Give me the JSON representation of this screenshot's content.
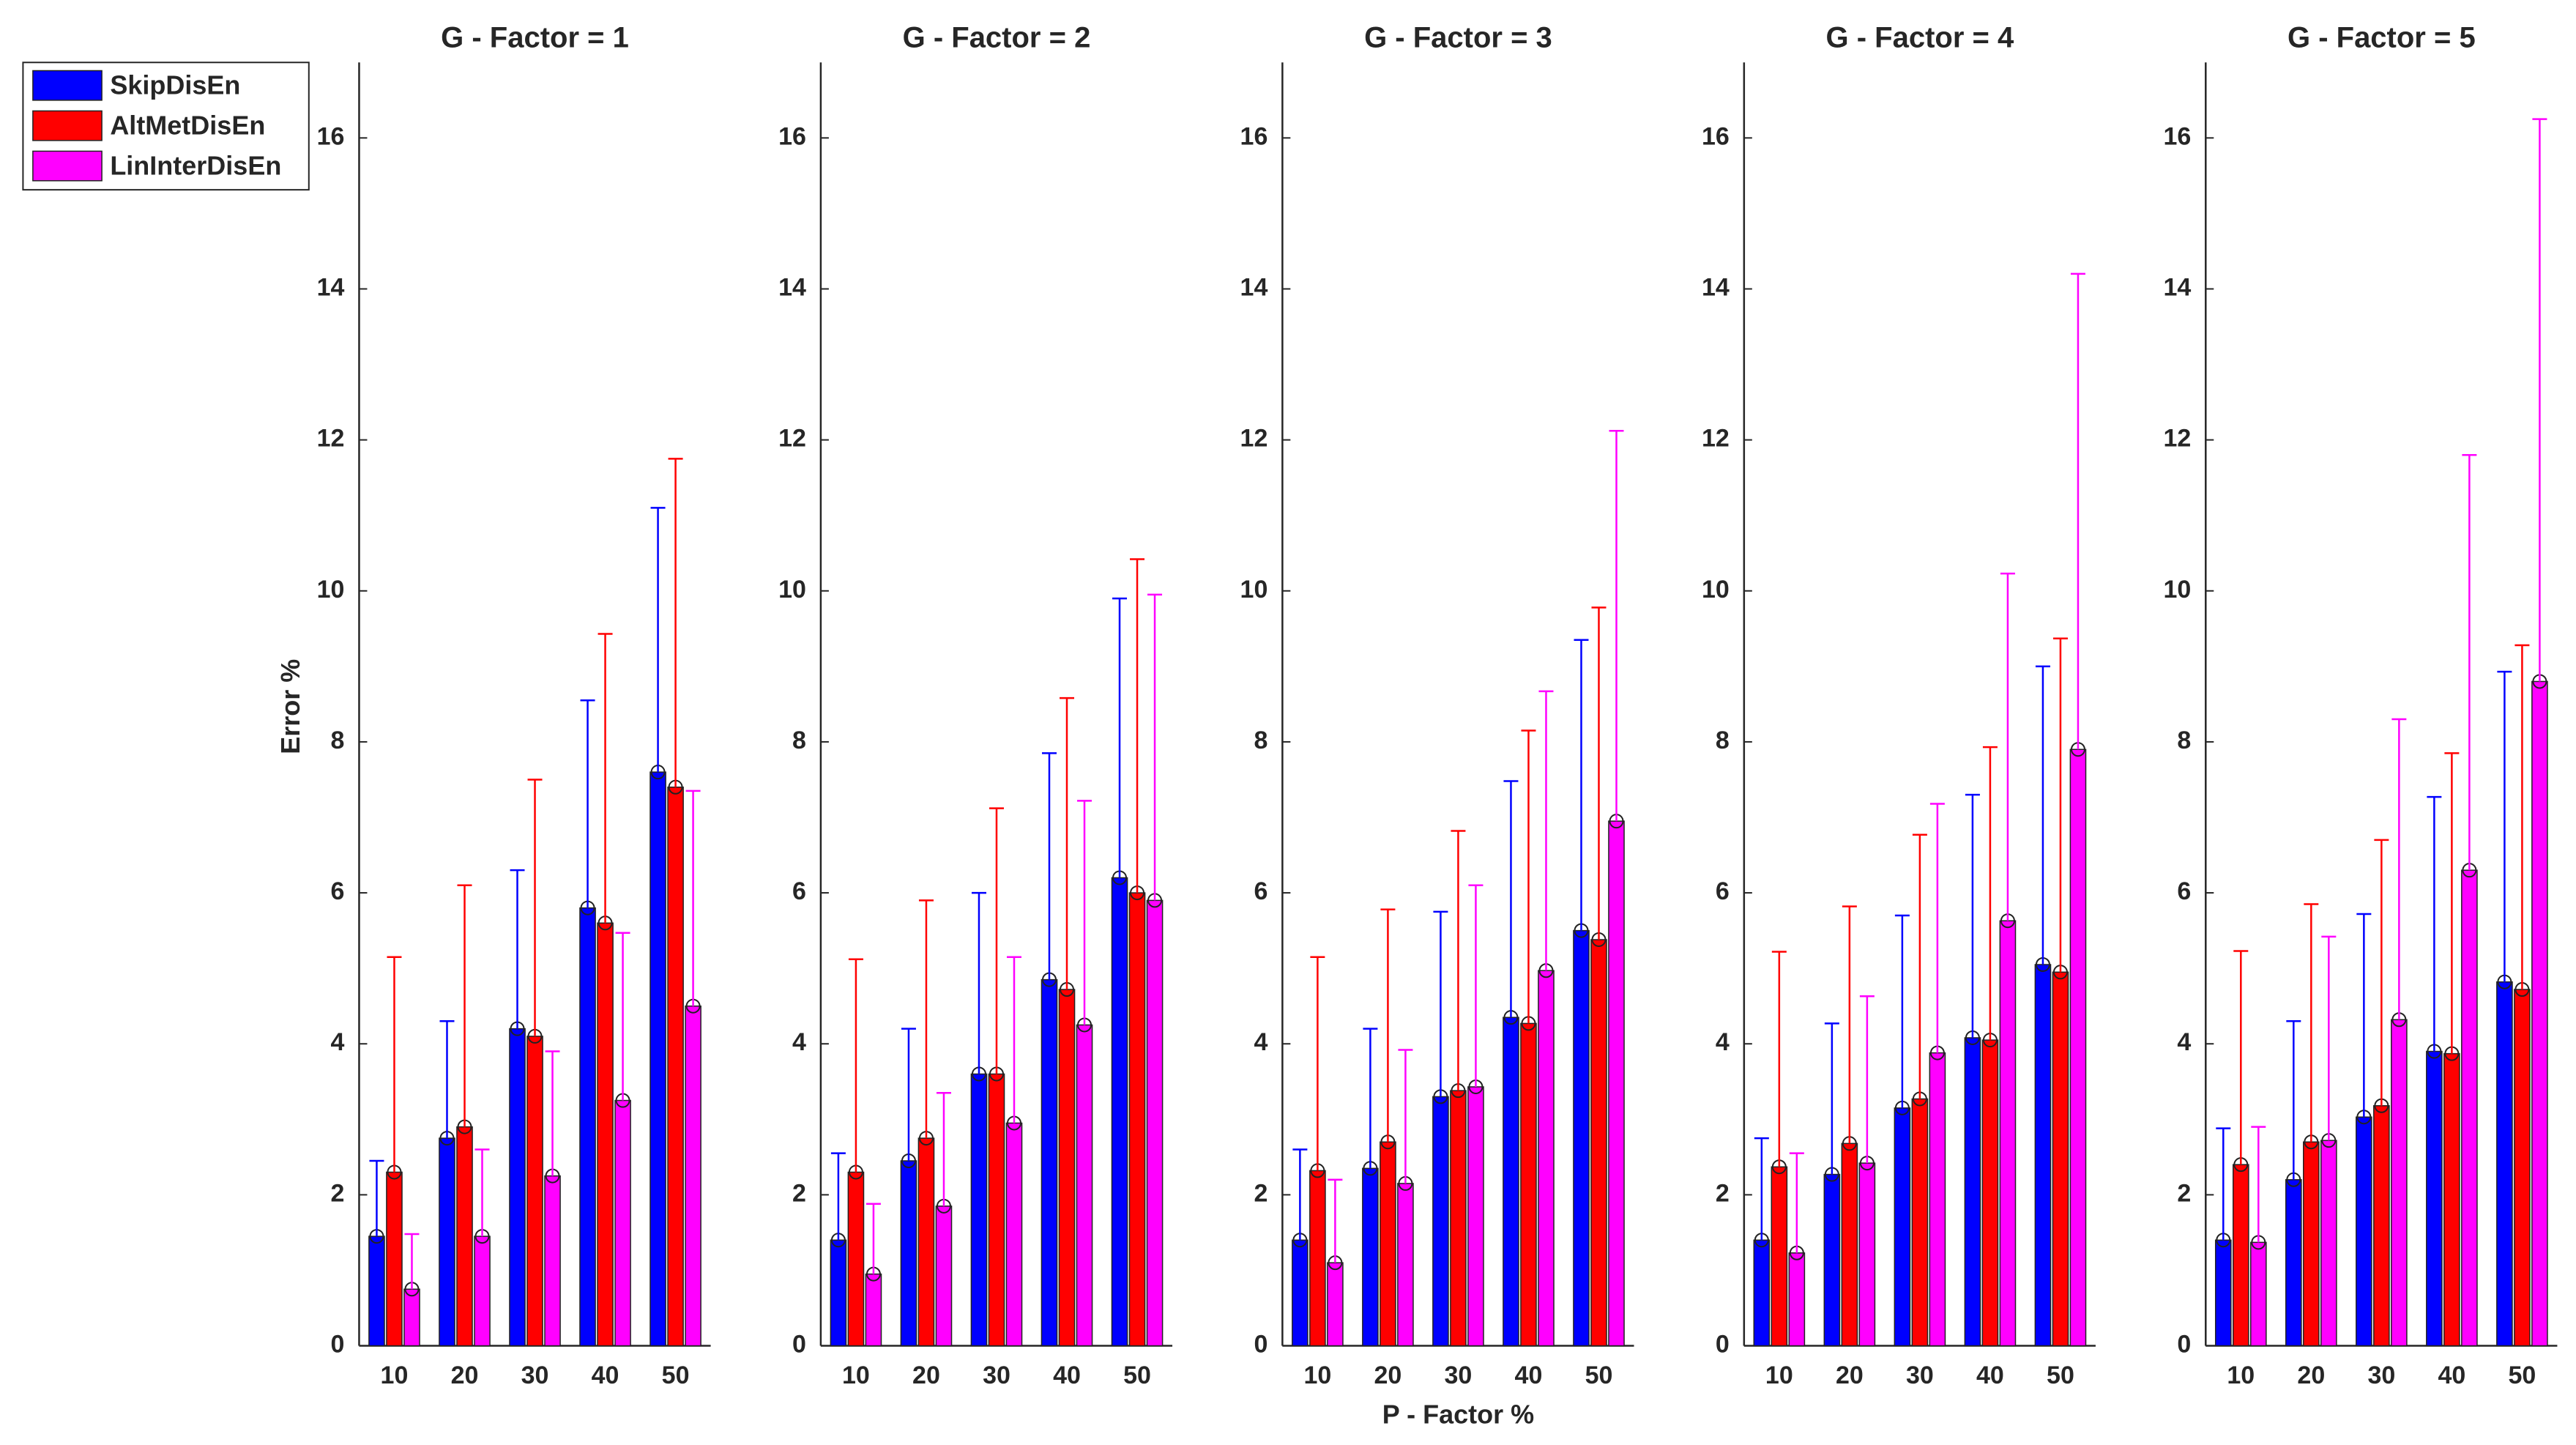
{
  "chart_data": [
    {
      "type": "bar",
      "title": "G - Factor = 1",
      "ylabel": "Error %",
      "categories": [
        "10",
        "20",
        "30",
        "40",
        "50"
      ],
      "series": [
        {
          "name": "SkipDisEn",
          "color": "#0000ff",
          "values": [
            1.45,
            2.75,
            4.2,
            5.8,
            7.6
          ],
          "errors": [
            1.0,
            1.55,
            2.1,
            2.75,
            3.5
          ]
        },
        {
          "name": "AltMetDisEn",
          "color": "#ff0000",
          "values": [
            2.3,
            2.9,
            4.1,
            5.6,
            7.4
          ],
          "errors": [
            2.85,
            3.2,
            3.4,
            3.83,
            4.35
          ]
        },
        {
          "name": "LinInterDisEn",
          "color": "#ff00ff",
          "values": [
            0.75,
            1.45,
            2.25,
            3.25,
            4.5
          ],
          "errors": [
            0.73,
            1.15,
            1.65,
            2.22,
            2.85
          ]
        }
      ],
      "ylim": [
        0,
        17
      ],
      "yticks": [
        0,
        2,
        4,
        6,
        8,
        10,
        12,
        14,
        16
      ],
      "legend": "upper left"
    },
    {
      "type": "bar",
      "title": "G - Factor = 2",
      "categories": [
        "10",
        "20",
        "30",
        "40",
        "50"
      ],
      "series": [
        {
          "color": "#0000ff",
          "values": [
            1.4,
            2.45,
            3.6,
            4.85,
            6.2
          ],
          "errors": [
            1.15,
            1.75,
            2.4,
            3.0,
            3.7
          ]
        },
        {
          "color": "#ff0000",
          "values": [
            2.3,
            2.75,
            3.6,
            4.72,
            6.0
          ],
          "errors": [
            2.82,
            3.15,
            3.52,
            3.86,
            4.42
          ]
        },
        {
          "color": "#ff00ff",
          "values": [
            0.95,
            1.85,
            2.95,
            4.25,
            5.9
          ],
          "errors": [
            0.93,
            1.5,
            2.2,
            2.97,
            4.05
          ]
        }
      ],
      "ylim": [
        0,
        17
      ],
      "yticks": [
        0,
        2,
        4,
        6,
        8,
        10,
        12,
        14,
        16
      ]
    },
    {
      "type": "bar",
      "title": "G - Factor = 3",
      "xlabel": "P - Factor %",
      "categories": [
        "10",
        "20",
        "30",
        "40",
        "50"
      ],
      "series": [
        {
          "color": "#0000ff",
          "values": [
            1.4,
            2.35,
            3.3,
            4.35,
            5.5
          ],
          "errors": [
            1.2,
            1.85,
            2.45,
            3.13,
            3.85
          ]
        },
        {
          "color": "#ff0000",
          "values": [
            2.32,
            2.7,
            3.38,
            4.27,
            5.38
          ],
          "errors": [
            2.83,
            3.08,
            3.44,
            3.88,
            4.4
          ]
        },
        {
          "color": "#ff00ff",
          "values": [
            1.1,
            2.15,
            3.43,
            4.97,
            6.95
          ],
          "errors": [
            1.1,
            1.77,
            2.67,
            3.7,
            5.17
          ]
        }
      ],
      "ylim": [
        0,
        17
      ],
      "yticks": [
        0,
        2,
        4,
        6,
        8,
        10,
        12,
        14,
        16
      ]
    },
    {
      "type": "bar",
      "title": "G - Factor = 4",
      "categories": [
        "10",
        "20",
        "30",
        "40",
        "50"
      ],
      "series": [
        {
          "color": "#0000ff",
          "values": [
            1.4,
            2.27,
            3.15,
            4.08,
            5.05
          ],
          "errors": [
            1.35,
            2.0,
            2.55,
            3.22,
            3.95
          ]
        },
        {
          "color": "#ff0000",
          "values": [
            2.37,
            2.68,
            3.27,
            4.05,
            4.95
          ],
          "errors": [
            2.85,
            3.14,
            3.5,
            3.88,
            4.42
          ]
        },
        {
          "color": "#ff00ff",
          "values": [
            1.23,
            2.42,
            3.88,
            5.63,
            7.9
          ],
          "errors": [
            1.32,
            2.21,
            3.3,
            4.6,
            6.3
          ]
        }
      ],
      "ylim": [
        0,
        17
      ],
      "yticks": [
        0,
        2,
        4,
        6,
        8,
        10,
        12,
        14,
        16
      ]
    },
    {
      "type": "bar",
      "title": "G - Factor = 5",
      "categories": [
        "10",
        "20",
        "30",
        "40",
        "50"
      ],
      "series": [
        {
          "color": "#0000ff",
          "values": [
            1.4,
            2.2,
            3.03,
            3.9,
            4.82
          ],
          "errors": [
            1.48,
            2.1,
            2.69,
            3.37,
            4.11
          ]
        },
        {
          "color": "#ff0000",
          "values": [
            2.4,
            2.7,
            3.18,
            3.87,
            4.72
          ],
          "errors": [
            2.83,
            3.15,
            3.52,
            3.98,
            4.56
          ]
        },
        {
          "color": "#ff00ff",
          "values": [
            1.37,
            2.72,
            4.32,
            6.3,
            8.8
          ],
          "errors": [
            1.53,
            2.7,
            3.98,
            5.5,
            7.45
          ]
        }
      ],
      "ylim": [
        0,
        17
      ],
      "yticks": [
        0,
        2,
        4,
        6,
        8,
        10,
        12,
        14,
        16
      ]
    }
  ]
}
